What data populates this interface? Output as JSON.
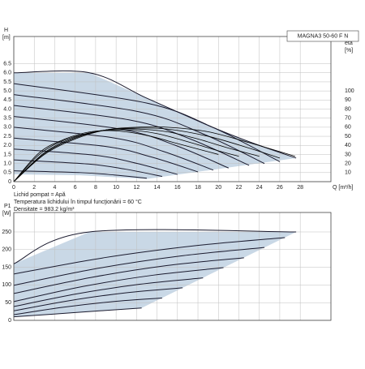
{
  "chart_data": [
    {
      "type": "line",
      "title": "MAGNA3 50-60 F N",
      "ylabel": [
        "H",
        "[m]"
      ],
      "y2label": [
        "eta",
        "[%]"
      ],
      "xlabel": "Q [m³/h]",
      "annotations": [
        "Lichid pompat = Apă",
        "Temperatura lichidului în timpul funcţionării = 60 °C",
        "Densitate = 983.2 kg/m³"
      ],
      "xlim": [
        0,
        31
      ],
      "xticks": [
        0,
        2,
        4,
        6,
        8,
        10,
        12,
        14,
        16,
        18,
        20,
        22,
        24,
        26,
        28
      ],
      "xtick_labels": true,
      "ylim": [
        0,
        8
      ],
      "yticks": [
        0,
        0.5,
        {
          "value": 1,
          "label": "1.0"
        },
        1.5,
        {
          "value": 2,
          "label": "2.0"
        },
        2.5,
        {
          "value": 3,
          "label": "3.0"
        },
        3.5,
        {
          "value": 4,
          "label": "4.0"
        },
        4.5,
        {
          "value": 5,
          "label": "5.0"
        },
        5.5,
        {
          "value": 6,
          "label": "6.0"
        },
        6.5
      ],
      "y2lim": [
        0,
        160
      ],
      "y2ticks": [
        10,
        20,
        30,
        40,
        50,
        60,
        70,
        80,
        90,
        100
      ],
      "grid": true,
      "region": {
        "color": "#c9d8e6",
        "x": [
          0,
          7.4,
          13,
          19,
          23,
          27.6,
          13,
          6.5,
          0
        ],
        "values": [
          6,
          6,
          4.6,
          3.1,
          2.2,
          1.3,
          0.15,
          0.35,
          0.4
        ]
      },
      "series": [
        {
          "color": "#1a1a2e",
          "x": [
            0,
            7.4,
            13,
            19,
            23,
            27.6
          ],
          "values": [
            6,
            6,
            4.6,
            3.1,
            2.2,
            1.3
          ]
        },
        {
          "color": "#1a1a2e",
          "x": [
            0,
            13,
            19.5,
            26
          ],
          "values": [
            5.4,
            4.33,
            2.98,
            1.1
          ]
        },
        {
          "color": "#1a1a2e",
          "x": [
            0,
            12.25,
            18.4,
            24.5
          ],
          "values": [
            4.8,
            3.85,
            2.66,
            1.0
          ]
        },
        {
          "color": "#1a1a2e",
          "x": [
            0,
            11.5,
            17.3,
            23
          ],
          "values": [
            4.2,
            3.38,
            2.34,
            0.9
          ]
        },
        {
          "color": "#1a1a2e",
          "x": [
            0,
            10.5,
            15.8,
            21
          ],
          "values": [
            3.6,
            2.89,
            2.0,
            0.75
          ]
        },
        {
          "color": "#1a1a2e",
          "x": [
            0,
            9.8,
            14.6,
            19.5
          ],
          "values": [
            3.0,
            2.41,
            1.67,
            0.64
          ]
        },
        {
          "color": "#1a1a2e",
          "x": [
            0,
            9,
            13.5,
            18
          ],
          "values": [
            2.4,
            1.94,
            1.35,
            0.54
          ]
        },
        {
          "color": "#1a1a2e",
          "x": [
            0,
            8,
            12,
            16
          ],
          "values": [
            1.8,
            1.45,
            1.01,
            0.4
          ]
        },
        {
          "color": "#1a1a2e",
          "x": [
            0,
            7.3,
            10.9,
            14.5
          ],
          "values": [
            1.2,
            0.97,
            0.69,
            0.29
          ]
        },
        {
          "color": "#1a1a2e",
          "x": [
            0,
            6.5,
            9.8,
            13
          ],
          "values": [
            0.6,
            0.5,
            0.37,
            0.19
          ]
        },
        {
          "color": "#000000",
          "axis": "y2",
          "x": [
            0,
            3,
            6,
            9,
            12,
            15,
            19,
            23,
            27.5
          ],
          "values": [
            0,
            30,
            47,
            57,
            60,
            60,
            55,
            43,
            28
          ]
        },
        {
          "color": "#000000",
          "axis": "y2",
          "x": [
            0,
            3,
            6,
            9,
            12,
            15,
            19,
            23,
            26
          ],
          "values": [
            0,
            31,
            48,
            57,
            59,
            58,
            50,
            37,
            26
          ]
        },
        {
          "color": "#000000",
          "axis": "y2",
          "x": [
            0,
            3,
            6,
            9,
            12,
            15,
            18,
            21,
            24
          ],
          "values": [
            0,
            32,
            49,
            57,
            58,
            55,
            47,
            37,
            28
          ]
        },
        {
          "color": "#000000",
          "axis": "y2",
          "x": [
            0,
            2.5,
            5,
            8,
            11,
            14,
            17,
            20,
            22
          ],
          "values": [
            0,
            30,
            46,
            55,
            57,
            53,
            44,
            34,
            28
          ]
        },
        {
          "color": "#000000",
          "axis": "y2",
          "x": [
            0,
            2.5,
            5,
            7.5,
            10,
            13,
            16,
            18,
            20
          ],
          "values": [
            0,
            32,
            47,
            55,
            56,
            51,
            42,
            36,
            30
          ]
        }
      ]
    },
    {
      "type": "line",
      "ylabel": [
        "P1",
        "[W]"
      ],
      "xlim": [
        0,
        31
      ],
      "xticks": [
        0,
        2,
        4,
        6,
        8,
        10,
        12,
        14,
        16,
        18,
        20,
        22,
        24,
        26,
        28
      ],
      "xtick_labels": false,
      "ylim": [
        0,
        305
      ],
      "yticks": [
        0,
        50,
        100,
        150,
        200,
        250
      ],
      "grid": true,
      "region": {
        "color": "#c9d8e6",
        "x": [
          0,
          7.4,
          27.6,
          12.5,
          6,
          0
        ],
        "values": [
          160,
          250,
          250,
          35,
          22,
          10
        ]
      },
      "series": [
        {
          "color": "#1a1a2e",
          "x": [
            0,
            7.4,
            27.6
          ],
          "values": [
            160,
            250,
            250
          ]
        },
        {
          "color": "#1a1a2e",
          "x": [
            0,
            8.8,
            17.7,
            26.5
          ],
          "values": [
            131,
            177,
            211,
            234
          ]
        },
        {
          "color": "#1a1a2e",
          "x": [
            0,
            8.2,
            16.3,
            24.5
          ],
          "values": [
            99,
            147,
            182,
            206
          ]
        },
        {
          "color": "#1a1a2e",
          "x": [
            0,
            7.5,
            15,
            22.5
          ],
          "values": [
            76,
            121,
            155,
            177
          ]
        },
        {
          "color": "#1a1a2e",
          "x": [
            0,
            6.8,
            13.7,
            20.5
          ],
          "values": [
            53,
            96,
            128,
            149
          ]
        },
        {
          "color": "#1a1a2e",
          "x": [
            0,
            6.2,
            12.3,
            18.5
          ],
          "values": [
            39,
            75,
            102,
            120
          ]
        },
        {
          "color": "#1a1a2e",
          "x": [
            0,
            5.5,
            11,
            16.5
          ],
          "values": [
            27,
            56,
            78,
            92
          ]
        },
        {
          "color": "#1a1a2e",
          "x": [
            0,
            4.8,
            9.7,
            14.5
          ],
          "values": [
            16,
            37,
            53,
            63
          ]
        },
        {
          "color": "#1a1a2e",
          "x": [
            0,
            6,
            12.5
          ],
          "values": [
            10,
            22,
            35
          ]
        }
      ]
    }
  ]
}
